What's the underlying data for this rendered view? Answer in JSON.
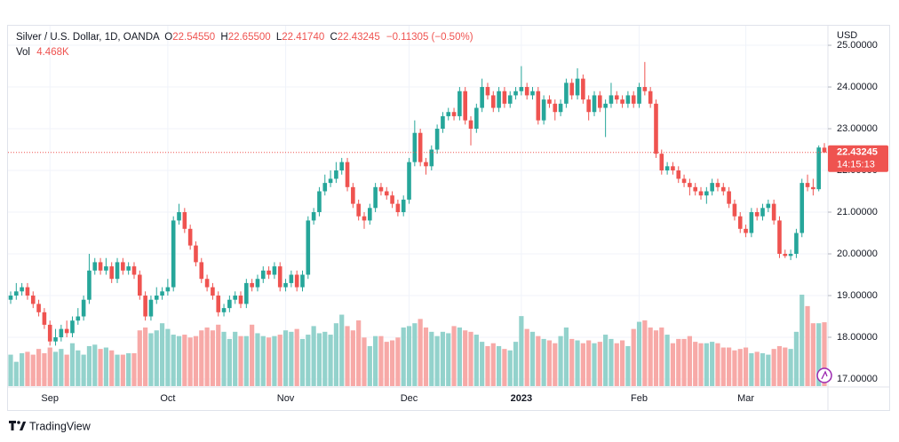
{
  "chart_data": {
    "type": "candlestick",
    "symbol": "Silver / U.S. Dollar, 1D, OANDA",
    "ohlc_legend": {
      "o_label": "O",
      "open": "22.54550",
      "h_label": "H",
      "high": "22.65500",
      "l_label": "L",
      "low": "22.41740",
      "c_label": "C",
      "close": "22.43245",
      "change": "−0.11305 (−0.50%)"
    },
    "volume_legend": {
      "label": "Vol",
      "value": "4.468K"
    },
    "currency": "USD",
    "up_color": "#26a69a",
    "down_color": "#ef5350",
    "up_volume_color": "#93d2cc",
    "down_volume_color": "#f7a9a7",
    "grid": true,
    "categories": [
      null,
      null,
      null,
      null,
      null,
      null,
      null,
      "Sep",
      null,
      null,
      null,
      null,
      null,
      null,
      null,
      null,
      null,
      null,
      null,
      null,
      null,
      null,
      null,
      null,
      null,
      null,
      null,
      null,
      "Oct",
      null,
      null,
      null,
      null,
      null,
      null,
      null,
      null,
      null,
      null,
      null,
      null,
      null,
      null,
      null,
      null,
      null,
      null,
      null,
      null,
      "Nov",
      null,
      null,
      null,
      null,
      null,
      null,
      null,
      null,
      null,
      null,
      null,
      null,
      null,
      null,
      null,
      null,
      null,
      null,
      null,
      null,
      null,
      "Dec",
      null,
      null,
      null,
      null,
      null,
      null,
      null,
      null,
      null,
      null,
      null,
      null,
      null,
      null,
      null,
      null,
      null,
      null,
      null,
      "2023",
      null,
      null,
      null,
      null,
      null,
      null,
      null,
      null,
      null,
      null,
      null,
      null,
      null,
      null,
      null,
      null,
      null,
      null,
      null,
      null,
      "Feb",
      null,
      null,
      null,
      null,
      null,
      null,
      null,
      null,
      null,
      null,
      null,
      null,
      null,
      null,
      null,
      null,
      null,
      null,
      "Mar",
      null,
      null,
      null,
      null,
      null,
      null,
      null,
      null,
      null,
      null,
      null,
      null,
      null,
      null
    ],
    "open": [
      18.9,
      19.0,
      19.1,
      19.2,
      19.0,
      18.8,
      18.6,
      18.3,
      17.9,
      18.0,
      18.2,
      18.1,
      18.4,
      18.5,
      18.9,
      19.6,
      19.8,
      19.6,
      19.7,
      19.4,
      19.8,
      19.6,
      19.7,
      19.5,
      19.0,
      18.5,
      18.9,
      19.0,
      19.1,
      19.2,
      20.8,
      21.0,
      20.6,
      20.2,
      19.8,
      19.4,
      19.2,
      19.0,
      18.6,
      18.7,
      18.9,
      19.0,
      18.8,
      19.3,
      19.2,
      19.4,
      19.6,
      19.5,
      19.7,
      19.2,
      19.3,
      19.5,
      19.2,
      19.5,
      20.8,
      21.0,
      21.5,
      21.7,
      21.8,
      22.0,
      22.2,
      21.6,
      21.2,
      20.9,
      20.8,
      21.1,
      21.6,
      21.5,
      21.4,
      21.2,
      21.0,
      21.3,
      22.2,
      22.9,
      22.2,
      22.1,
      22.5,
      23.0,
      23.3,
      23.4,
      23.3,
      23.9,
      23.2,
      23.0,
      23.5,
      24.0,
      23.8,
      23.5,
      23.9,
      23.6,
      23.8,
      23.9,
      24.0,
      23.8,
      23.9,
      23.2,
      23.7,
      23.6,
      23.4,
      23.6,
      24.1,
      23.8,
      24.2,
      23.7,
      23.4,
      23.8,
      23.5,
      23.6,
      23.8,
      23.7,
      23.6,
      23.8,
      23.6,
      24.0,
      23.9,
      23.6,
      22.4,
      22.0,
      22.1,
      22.0,
      21.8,
      21.7,
      21.6,
      21.5,
      21.4,
      21.5,
      21.7,
      21.6,
      21.5,
      21.2,
      20.9,
      20.6,
      20.5,
      21.0,
      20.9,
      21.1,
      21.2,
      20.8,
      20.0,
      19.95,
      20.0,
      20.5,
      21.7,
      21.6,
      21.55,
      22.5455
    ],
    "high": [
      19.1,
      19.3,
      19.3,
      19.3,
      19.1,
      18.9,
      18.7,
      18.4,
      18.2,
      18.3,
      18.4,
      18.5,
      18.7,
      19.0,
      20.0,
      19.9,
      19.9,
      19.9,
      19.8,
      19.9,
      19.9,
      19.8,
      19.8,
      19.6,
      19.1,
      19.0,
      19.2,
      19.2,
      19.4,
      20.9,
      21.2,
      21.1,
      20.7,
      20.3,
      19.9,
      19.5,
      19.3,
      19.1,
      18.8,
      19.0,
      19.1,
      19.1,
      19.4,
      19.4,
      19.5,
      19.7,
      19.7,
      19.8,
      19.8,
      19.4,
      19.6,
      19.6,
      19.6,
      20.9,
      21.1,
      21.6,
      21.9,
      22.0,
      22.2,
      22.3,
      22.3,
      21.7,
      21.3,
      21.0,
      21.2,
      21.7,
      21.7,
      21.6,
      21.5,
      21.3,
      21.4,
      22.3,
      23.2,
      23.0,
      22.3,
      22.6,
      23.1,
      23.4,
      23.5,
      23.5,
      24.0,
      24.0,
      23.3,
      23.6,
      24.2,
      24.1,
      23.9,
      24.0,
      24.0,
      23.9,
      24.0,
      24.5,
      24.1,
      24.0,
      24.0,
      23.8,
      23.8,
      23.7,
      23.7,
      24.2,
      24.2,
      24.45,
      24.3,
      23.8,
      23.9,
      23.9,
      23.7,
      24.1,
      23.9,
      23.8,
      23.9,
      23.9,
      24.1,
      24.6,
      24.0,
      23.7,
      22.5,
      22.2,
      22.2,
      22.1,
      21.9,
      21.8,
      21.7,
      21.6,
      21.6,
      21.8,
      21.8,
      21.7,
      21.6,
      21.3,
      21.0,
      20.7,
      21.1,
      21.1,
      21.2,
      21.3,
      21.3,
      20.9,
      20.1,
      20.1,
      20.6,
      21.8,
      21.9,
      21.8,
      22.6,
      22.655
    ],
    "low": [
      18.8,
      18.9,
      19.0,
      18.9,
      18.7,
      18.5,
      18.2,
      17.8,
      17.8,
      17.9,
      18.0,
      18.0,
      18.3,
      18.4,
      18.8,
      19.5,
      19.5,
      19.5,
      19.3,
      19.3,
      19.5,
      19.5,
      19.4,
      18.9,
      18.4,
      18.4,
      18.8,
      18.9,
      19.0,
      19.1,
      20.7,
      20.5,
      20.1,
      19.7,
      19.3,
      19.1,
      18.9,
      18.5,
      18.5,
      18.6,
      18.8,
      18.7,
      18.7,
      19.1,
      19.1,
      19.3,
      19.4,
      19.4,
      19.1,
      19.1,
      19.2,
      19.1,
      19.1,
      19.4,
      20.7,
      20.9,
      21.4,
      21.6,
      21.7,
      21.9,
      21.5,
      21.1,
      20.8,
      20.6,
      20.7,
      21.0,
      21.4,
      21.3,
      21.1,
      20.9,
      20.9,
      21.2,
      22.1,
      22.1,
      21.9,
      22.0,
      22.4,
      22.9,
      23.2,
      23.2,
      23.2,
      23.1,
      22.6,
      22.9,
      23.4,
      23.7,
      23.4,
      23.4,
      23.5,
      23.5,
      23.7,
      23.8,
      23.7,
      23.7,
      23.1,
      23.1,
      23.5,
      23.2,
      23.3,
      23.5,
      23.7,
      23.7,
      23.6,
      23.2,
      23.3,
      23.4,
      22.8,
      23.5,
      23.6,
      23.5,
      23.5,
      23.5,
      23.5,
      23.8,
      23.5,
      22.3,
      21.9,
      21.9,
      21.9,
      21.7,
      21.6,
      21.4,
      21.4,
      21.3,
      21.2,
      21.4,
      21.5,
      21.4,
      21.1,
      20.8,
      20.5,
      20.4,
      20.4,
      20.8,
      20.8,
      21.0,
      20.7,
      19.9,
      19.9,
      19.85,
      19.9,
      20.4,
      21.5,
      21.4,
      21.5,
      22.4174
    ],
    "close": [
      19.0,
      19.1,
      19.2,
      19.0,
      18.8,
      18.6,
      18.3,
      17.9,
      18.0,
      18.2,
      18.1,
      18.4,
      18.5,
      18.9,
      19.6,
      19.8,
      19.6,
      19.7,
      19.4,
      19.8,
      19.6,
      19.7,
      19.5,
      19.0,
      18.5,
      18.9,
      19.0,
      19.1,
      19.2,
      20.8,
      21.0,
      20.6,
      20.2,
      19.8,
      19.4,
      19.2,
      19.0,
      18.6,
      18.7,
      18.9,
      19.0,
      18.8,
      19.3,
      19.2,
      19.4,
      19.6,
      19.5,
      19.7,
      19.2,
      19.3,
      19.5,
      19.2,
      19.5,
      20.8,
      21.0,
      21.5,
      21.7,
      21.8,
      22.0,
      22.2,
      21.6,
      21.2,
      20.9,
      20.8,
      21.1,
      21.6,
      21.5,
      21.4,
      21.2,
      21.0,
      21.3,
      22.2,
      22.9,
      22.2,
      22.1,
      22.5,
      23.0,
      23.3,
      23.4,
      23.3,
      23.9,
      23.2,
      23.0,
      23.5,
      24.0,
      23.8,
      23.5,
      23.9,
      23.6,
      23.8,
      23.9,
      24.0,
      23.8,
      23.9,
      23.2,
      23.7,
      23.6,
      23.4,
      23.6,
      24.1,
      23.8,
      24.2,
      23.7,
      23.4,
      23.8,
      23.5,
      23.6,
      23.8,
      23.7,
      23.6,
      23.8,
      23.6,
      24.0,
      23.9,
      23.6,
      22.4,
      22.0,
      22.1,
      22.0,
      21.8,
      21.7,
      21.6,
      21.5,
      21.4,
      21.5,
      21.7,
      21.6,
      21.5,
      21.2,
      20.9,
      20.6,
      20.5,
      21.0,
      20.9,
      21.1,
      21.2,
      20.8,
      20.0,
      19.95,
      20.0,
      20.5,
      21.7,
      21.6,
      21.55,
      22.55,
      22.43245
    ],
    "volume": [
      2200,
      1700,
      2300,
      2400,
      2200,
      2600,
      2300,
      2700,
      2400,
      2600,
      2200,
      3000,
      2500,
      2200,
      2800,
      2900,
      2600,
      2700,
      2500,
      2200,
      2200,
      2300,
      2300,
      3900,
      4100,
      3700,
      3900,
      4400,
      4000,
      3600,
      3500,
      3600,
      3400,
      3500,
      3900,
      4100,
      3900,
      4300,
      3800,
      3300,
      3800,
      3500,
      3500,
      4300,
      3700,
      3500,
      3400,
      3500,
      3600,
      3900,
      3800,
      4000,
      3300,
      3600,
      4200,
      3700,
      3800,
      3600,
      4400,
      5000,
      4200,
      3900,
      4600,
      3400,
      2800,
      3500,
      3500,
      3100,
      3200,
      3400,
      4100,
      4200,
      4400,
      4700,
      4100,
      3800,
      3500,
      3800,
      3700,
      4200,
      4100,
      3900,
      3800,
      3600,
      3100,
      2800,
      3000,
      2800,
      2600,
      2500,
      3100,
      4900,
      4000,
      3800,
      3500,
      3300,
      3200,
      3000,
      3500,
      4100,
      3300,
      3200,
      3000,
      3200,
      3000,
      3100,
      3600,
      3300,
      3000,
      3200,
      2800,
      4000,
      4500,
      4600,
      4100,
      3900,
      4100,
      3600,
      3000,
      3300,
      3300,
      3500,
      3100,
      3000,
      3000,
      3100,
      3000,
      2700,
      2700,
      2500,
      2600,
      2700,
      2300,
      2400,
      2300,
      2200,
      2600,
      2800,
      2700,
      2600,
      3800,
      6400,
      5600,
      4400,
      4400,
      4468
    ],
    "ylim": [
      16.83,
      25.49
    ],
    "yticks": [
      {
        "value": 17,
        "label": "17.00000"
      },
      {
        "value": 18,
        "label": "18.00000"
      },
      {
        "value": 19,
        "label": "19.00000"
      },
      {
        "value": 20,
        "label": "20.00000"
      },
      {
        "value": 21,
        "label": "21.00000"
      },
      {
        "value": 22,
        "label": "22.00000"
      },
      {
        "value": 23,
        "label": "23.00000"
      },
      {
        "value": 24,
        "label": "24.00000"
      },
      {
        "value": 25,
        "label": "25.00000"
      }
    ],
    "price_line": {
      "value": 22.43245,
      "label": "22.43245",
      "countdown": "14:15:13"
    }
  },
  "footer": {
    "brand": "TradingView"
  }
}
